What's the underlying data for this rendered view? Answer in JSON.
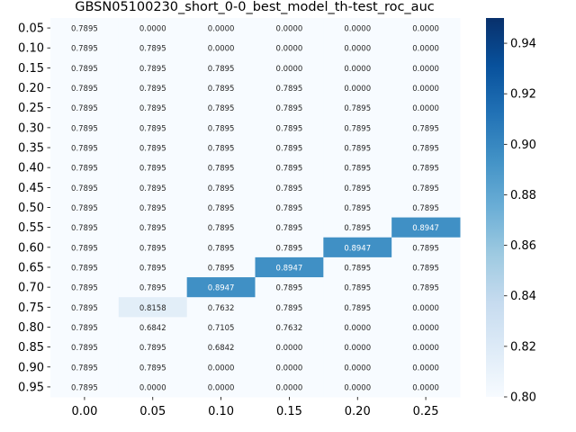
{
  "chart_data": {
    "type": "heatmap",
    "title": "GBSN05100230_short_0-0_best_model_th-test_roc_auc",
    "xlabel": "",
    "ylabel": "",
    "x_categories": [
      "0.00",
      "0.05",
      "0.10",
      "0.15",
      "0.20",
      "0.25"
    ],
    "y_categories": [
      "0.05",
      "0.10",
      "0.15",
      "0.20",
      "0.25",
      "0.30",
      "0.35",
      "0.40",
      "0.45",
      "0.50",
      "0.55",
      "0.60",
      "0.65",
      "0.70",
      "0.75",
      "0.80",
      "0.85",
      "0.90",
      "0.95"
    ],
    "values": [
      [
        0.7895,
        0.0,
        0.0,
        0.0,
        0.0,
        0.0
      ],
      [
        0.7895,
        0.7895,
        0.0,
        0.0,
        0.0,
        0.0
      ],
      [
        0.7895,
        0.7895,
        0.7895,
        0.0,
        0.0,
        0.0
      ],
      [
        0.7895,
        0.7895,
        0.7895,
        0.7895,
        0.0,
        0.0
      ],
      [
        0.7895,
        0.7895,
        0.7895,
        0.7895,
        0.7895,
        0.0
      ],
      [
        0.7895,
        0.7895,
        0.7895,
        0.7895,
        0.7895,
        0.7895
      ],
      [
        0.7895,
        0.7895,
        0.7895,
        0.7895,
        0.7895,
        0.7895
      ],
      [
        0.7895,
        0.7895,
        0.7895,
        0.7895,
        0.7895,
        0.7895
      ],
      [
        0.7895,
        0.7895,
        0.7895,
        0.7895,
        0.7895,
        0.7895
      ],
      [
        0.7895,
        0.7895,
        0.7895,
        0.7895,
        0.7895,
        0.7895
      ],
      [
        0.7895,
        0.7895,
        0.7895,
        0.7895,
        0.7895,
        0.8947
      ],
      [
        0.7895,
        0.7895,
        0.7895,
        0.7895,
        0.8947,
        0.7895
      ],
      [
        0.7895,
        0.7895,
        0.7895,
        0.8947,
        0.7895,
        0.7895
      ],
      [
        0.7895,
        0.7895,
        0.8947,
        0.7895,
        0.7895,
        0.7895
      ],
      [
        0.7895,
        0.8158,
        0.7632,
        0.7895,
        0.7895,
        0.0
      ],
      [
        0.7895,
        0.6842,
        0.7105,
        0.7632,
        0.0,
        0.0
      ],
      [
        0.7895,
        0.7895,
        0.6842,
        0.0,
        0.0,
        0.0
      ],
      [
        0.7895,
        0.7895,
        0.0,
        0.0,
        0.0,
        0.0
      ],
      [
        0.7895,
        0.0,
        0.0,
        0.0,
        0.0,
        0.0
      ]
    ],
    "value_format": "4 decimals",
    "colormap": "Blues",
    "color_range": [
      0.8,
      0.95
    ],
    "colorbar_ticks": [
      "0.80",
      "0.82",
      "0.84",
      "0.86",
      "0.88",
      "0.90",
      "0.92",
      "0.94"
    ],
    "colorbar_tick_values": [
      0.8,
      0.82,
      0.84,
      0.86,
      0.88,
      0.9,
      0.92,
      0.94
    ],
    "colors": {
      "low": "#f7fbff",
      "high": "#08306b",
      "text_dark": "#262626",
      "text_light": "#ffffff"
    }
  }
}
